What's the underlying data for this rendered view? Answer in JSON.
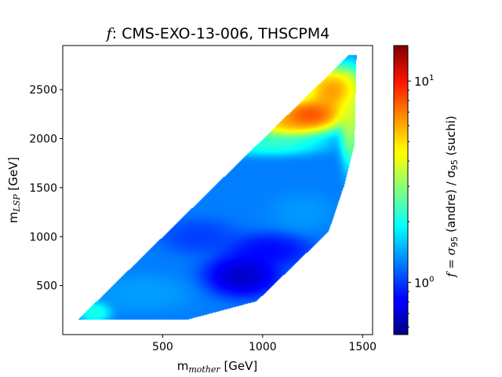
{
  "chart_data": {
    "type": "heatmap",
    "title_prefix": "f",
    "title_rest": ":  CMS-EXO-13-006,  THSCPM4",
    "xlabel_main": "m",
    "xlabel_sub": "mother",
    "xlabel_unit": " [GeV]",
    "ylabel_main": "m",
    "ylabel_sub": "LSP",
    "ylabel_unit": " [GeV]",
    "colorbar_label_prefix": "f = σ",
    "colorbar_label_sub1": "95",
    "colorbar_label_mid": " (andre) / σ",
    "colorbar_label_sub2": "95",
    "colorbar_label_end": " (suchi)",
    "xlim": [
      0,
      1550
    ],
    "ylim": [
      0,
      2950
    ],
    "x_ticks": [
      500,
      1000,
      1500
    ],
    "x_tick_labels": [
      "500",
      "1000",
      "1500"
    ],
    "y_ticks": [
      500,
      1000,
      1500,
      2000,
      2500
    ],
    "y_tick_labels": [
      "500",
      "1000",
      "1500",
      "2000",
      "2500"
    ],
    "colorbar_scale": "log",
    "colorbar_range": [
      0.55,
      15
    ],
    "colorbar_ticks": [
      1,
      10
    ],
    "colorbar_tick_labels": [
      "10^0",
      "10^1"
    ],
    "colormap": "jet",
    "region": [
      [
        75,
        150
      ],
      [
        620,
        150
      ],
      [
        970,
        340
      ],
      [
        1330,
        1050
      ],
      [
        1410,
        1530
      ],
      [
        1460,
        1940
      ],
      [
        1470,
        2850
      ],
      [
        1430,
        2850
      ]
    ],
    "features": [
      {
        "x": 1230,
        "y": 2240,
        "value": 14.0,
        "sx": 140,
        "sy": 140
      },
      {
        "x": 1350,
        "y": 2500,
        "value": 10.0,
        "sx": 110,
        "sy": 180
      },
      {
        "x": 1100,
        "y": 2150,
        "value": 7.0,
        "sx": 120,
        "sy": 110
      },
      {
        "x": 1440,
        "y": 2200,
        "value": 4.5,
        "sx": 40,
        "sy": 350
      },
      {
        "x": 1040,
        "y": 1950,
        "value": 2.6,
        "sx": 200,
        "sy": 90
      },
      {
        "x": 160,
        "y": 230,
        "value": 2.5,
        "sx": 60,
        "sy": 80
      },
      {
        "x": 900,
        "y": 600,
        "value": 0.58,
        "sx": 140,
        "sy": 160
      },
      {
        "x": 1030,
        "y": 860,
        "value": 0.75,
        "sx": 160,
        "sy": 130
      },
      {
        "x": 680,
        "y": 1000,
        "value": 0.95,
        "sx": 140,
        "sy": 130
      },
      {
        "x": 400,
        "y": 420,
        "value": 1.45,
        "sx": 180,
        "sy": 140
      },
      {
        "x": 1200,
        "y": 1250,
        "value": 1.4,
        "sx": 120,
        "sy": 150
      }
    ],
    "background_value": 1.25
  }
}
